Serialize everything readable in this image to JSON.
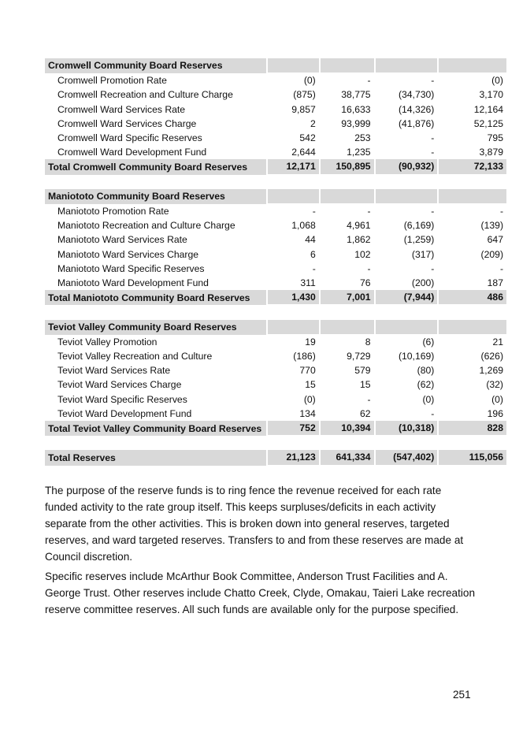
{
  "sections": [
    {
      "heading": "Cromwell Community Board Reserves",
      "rows": [
        {
          "label": "Cromwell Promotion Rate",
          "v": [
            "(0)",
            "-",
            "-",
            "(0)"
          ]
        },
        {
          "label": "Cromwell Recreation and Culture Charge",
          "v": [
            "(875)",
            "38,775",
            "(34,730)",
            "3,170"
          ]
        },
        {
          "label": "Cromwell Ward Services Rate",
          "v": [
            "9,857",
            "16,633",
            "(14,326)",
            "12,164"
          ]
        },
        {
          "label": "Cromwell Ward Services Charge",
          "v": [
            "2",
            "93,999",
            "(41,876)",
            "52,125"
          ]
        },
        {
          "label": "Cromwell Ward Specific Reserves",
          "v": [
            "542",
            "253",
            "-",
            "795"
          ]
        },
        {
          "label": "Cromwell Ward Development Fund",
          "v": [
            "2,644",
            "1,235",
            "-",
            "3,879"
          ]
        }
      ],
      "total": {
        "label": "Total Cromwell Community Board Reserves",
        "v": [
          "12,171",
          "150,895",
          "(90,932)",
          "72,133"
        ]
      }
    },
    {
      "heading": "Maniototo Community Board Reserves",
      "rows": [
        {
          "label": "Maniototo Promotion Rate",
          "v": [
            "-",
            "-",
            "-",
            "-"
          ]
        },
        {
          "label": "Maniototo Recreation and Culture Charge",
          "v": [
            "1,068",
            "4,961",
            "(6,169)",
            "(139)"
          ]
        },
        {
          "label": "Maniototo Ward Services Rate",
          "v": [
            "44",
            "1,862",
            "(1,259)",
            "647"
          ]
        },
        {
          "label": "Maniototo Ward Services Charge",
          "v": [
            "6",
            "102",
            "(317)",
            "(209)"
          ]
        },
        {
          "label": "Maniototo Ward Specific Reserves",
          "v": [
            "-",
            "-",
            "-",
            "-"
          ]
        },
        {
          "label": "Maniototo Ward Development Fund",
          "v": [
            "311",
            "76",
            "(200)",
            "187"
          ]
        }
      ],
      "total": {
        "label": "Total Maniototo Community Board Reserves",
        "v": [
          "1,430",
          "7,001",
          "(7,944)",
          "486"
        ]
      }
    },
    {
      "heading": "Teviot Valley Community Board Reserves",
      "rows": [
        {
          "label": "Teviot Valley Promotion",
          "v": [
            "19",
            "8",
            "(6)",
            "21"
          ]
        },
        {
          "label": "Teviot Valley Recreation and Culture",
          "v": [
            "(186)",
            "9,729",
            "(10,169)",
            "(626)"
          ]
        },
        {
          "label": "Teviot Ward Services Rate",
          "v": [
            "770",
            "579",
            "(80)",
            "1,269"
          ]
        },
        {
          "label": "Teviot Ward Services Charge",
          "v": [
            "15",
            "15",
            "(62)",
            "(32)"
          ]
        },
        {
          "label": "Teviot Ward Specific Reserves",
          "v": [
            "(0)",
            "-",
            "(0)",
            "(0)"
          ]
        },
        {
          "label": "Teviot Ward Development Fund",
          "v": [
            "134",
            "62",
            "-",
            "196"
          ]
        }
      ],
      "total": {
        "label": "Total Teviot Valley Community Board Reserves",
        "v": [
          "752",
          "10,394",
          "(10,318)",
          "828"
        ]
      }
    }
  ],
  "grand_total": {
    "label": "Total Reserves",
    "v": [
      "21,123",
      "641,334",
      "(547,402)",
      "115,056"
    ]
  },
  "paragraphs": [
    "The purpose of the reserve funds is to ring fence the revenue received for each rate funded activity to the rate group itself. This keeps surpluses/deficits in each activity separate from the other activities. This is broken down into general reserves, targeted reserves, and ward targeted reserves. Transfers to and from these reserves are made at Council discretion.",
    "Specific reserves include McArthur Book Committee, Anderson Trust Facilities and A. George Trust. Other reserves include Chatto Creek, Clyde, Omakau, Taieri Lake recreation reserve committee reserves. All such funds are available only for the purpose specified."
  ],
  "page_number": "251"
}
